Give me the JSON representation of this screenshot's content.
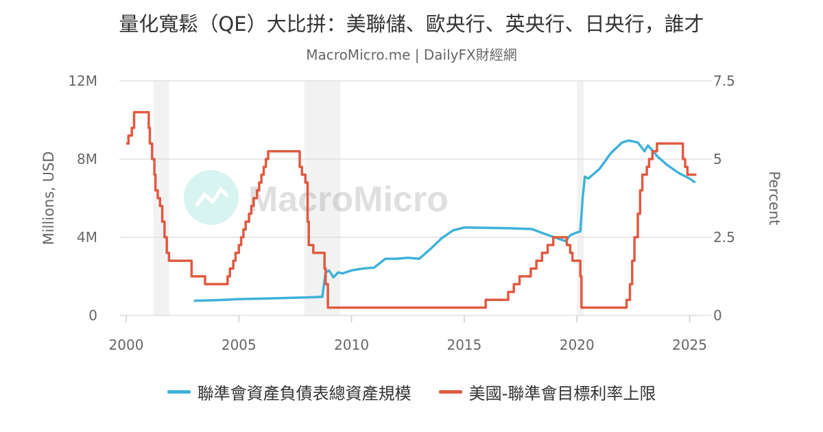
{
  "header": {
    "title": "量化寬鬆（QE）大比拼：美聯儲、歐央行、英央行、日央行，誰才",
    "subtitle": "MacroMicro.me | DailyFX財經網"
  },
  "watermark": {
    "text": "MacroMicro"
  },
  "chart_data": {
    "type": "line",
    "x_axis": {
      "range": [
        2000,
        2025.5
      ],
      "ticks": [
        2000,
        2005,
        2010,
        2015,
        2020,
        2025
      ]
    },
    "y_left": {
      "label": "Millions, USD",
      "range": [
        0,
        12000000
      ],
      "ticks": [
        "0",
        "4M",
        "8M",
        "12M"
      ],
      "tick_values": [
        0,
        4000000,
        8000000,
        12000000
      ]
    },
    "y_right": {
      "label": "Percent",
      "range": [
        0,
        7.5
      ],
      "ticks": [
        "0",
        "2.5",
        "5",
        "7.5"
      ],
      "tick_values": [
        0,
        2.5,
        5,
        7.5
      ]
    },
    "grid": true,
    "legend_position": "bottom",
    "recession_shading": [
      [
        2001.2,
        2001.9
      ],
      [
        2007.9,
        2009.5
      ],
      [
        2020.0,
        2020.3
      ]
    ],
    "series": [
      {
        "name": "聯準會資產負債表總資產規模",
        "axis": "left",
        "color": "#3eb2d9",
        "x": [
          2003.0,
          2004.0,
          2005.0,
          2006.0,
          2007.0,
          2008.0,
          2008.7,
          2008.85,
          2009.0,
          2009.2,
          2009.4,
          2009.6,
          2010.0,
          2010.5,
          2011.0,
          2011.5,
          2012.0,
          2012.5,
          2013.0,
          2013.5,
          2014.0,
          2014.5,
          2015.0,
          2016.0,
          2017.0,
          2018.0,
          2018.5,
          2019.0,
          2019.5,
          2019.7,
          2020.0,
          2020.15,
          2020.25,
          2020.35,
          2020.5,
          2021.0,
          2021.5,
          2022.0,
          2022.3,
          2022.7,
          2023.0,
          2023.15,
          2023.3,
          2023.6,
          2024.0,
          2024.5,
          2025.0,
          2025.25
        ],
        "y": [
          750000,
          780000,
          830000,
          860000,
          890000,
          920000,
          950000,
          2200000,
          2300000,
          1950000,
          2200000,
          2150000,
          2300000,
          2400000,
          2450000,
          2900000,
          2900000,
          2950000,
          2900000,
          3400000,
          3950000,
          4350000,
          4500000,
          4480000,
          4460000,
          4420000,
          4200000,
          4000000,
          3800000,
          4100000,
          4250000,
          4300000,
          6000000,
          7100000,
          7000000,
          7500000,
          8300000,
          8850000,
          8950000,
          8850000,
          8400000,
          8700000,
          8500000,
          8100000,
          7700000,
          7300000,
          7000000,
          6800000
        ]
      },
      {
        "name": "美國-聯準會目標利率上限",
        "axis": "right",
        "color": "#e05a42",
        "step": true,
        "x": [
          2000.0,
          2000.1,
          2000.25,
          2000.35,
          2000.55,
          2001.0,
          2001.05,
          2001.15,
          2001.25,
          2001.3,
          2001.4,
          2001.5,
          2001.6,
          2001.7,
          2001.8,
          2001.9,
          2002.0,
          2002.9,
          2003.5,
          2004.5,
          2004.6,
          2004.75,
          2004.85,
          2005.0,
          2005.1,
          2005.2,
          2005.3,
          2005.45,
          2005.55,
          2005.65,
          2005.8,
          2005.9,
          2006.0,
          2006.1,
          2006.2,
          2006.3,
          2006.5,
          2007.7,
          2007.8,
          2007.95,
          2008.05,
          2008.1,
          2008.3,
          2008.8,
          2008.85,
          2008.95,
          2015.95,
          2016.95,
          2017.2,
          2017.45,
          2017.95,
          2018.2,
          2018.45,
          2018.7,
          2018.95,
          2019.55,
          2019.7,
          2019.8,
          2020.15,
          2020.2,
          2022.2,
          2022.35,
          2022.45,
          2022.55,
          2022.7,
          2022.8,
          2022.9,
          2023.1,
          2023.2,
          2023.35,
          2023.55,
          2024.7,
          2024.8,
          2024.9,
          2025.0,
          2025.3
        ],
        "y": [
          5.5,
          5.75,
          6.0,
          6.5,
          6.5,
          6.0,
          5.5,
          5.0,
          4.5,
          4.0,
          3.75,
          3.5,
          3.0,
          2.5,
          2.0,
          1.75,
          1.75,
          1.25,
          1.0,
          1.25,
          1.5,
          1.75,
          2.0,
          2.25,
          2.5,
          2.75,
          3.0,
          3.25,
          3.5,
          3.75,
          4.0,
          4.25,
          4.5,
          4.75,
          5.0,
          5.25,
          5.25,
          4.75,
          4.5,
          4.25,
          3.0,
          2.25,
          2.0,
          1.5,
          1.0,
          0.25,
          0.5,
          0.75,
          1.0,
          1.25,
          1.5,
          1.75,
          2.0,
          2.25,
          2.5,
          2.25,
          2.0,
          1.75,
          1.25,
          0.25,
          0.5,
          1.0,
          1.75,
          2.5,
          3.25,
          4.0,
          4.5,
          4.75,
          5.0,
          5.25,
          5.5,
          5.0,
          4.75,
          4.5,
          4.5,
          4.5
        ]
      }
    ]
  }
}
